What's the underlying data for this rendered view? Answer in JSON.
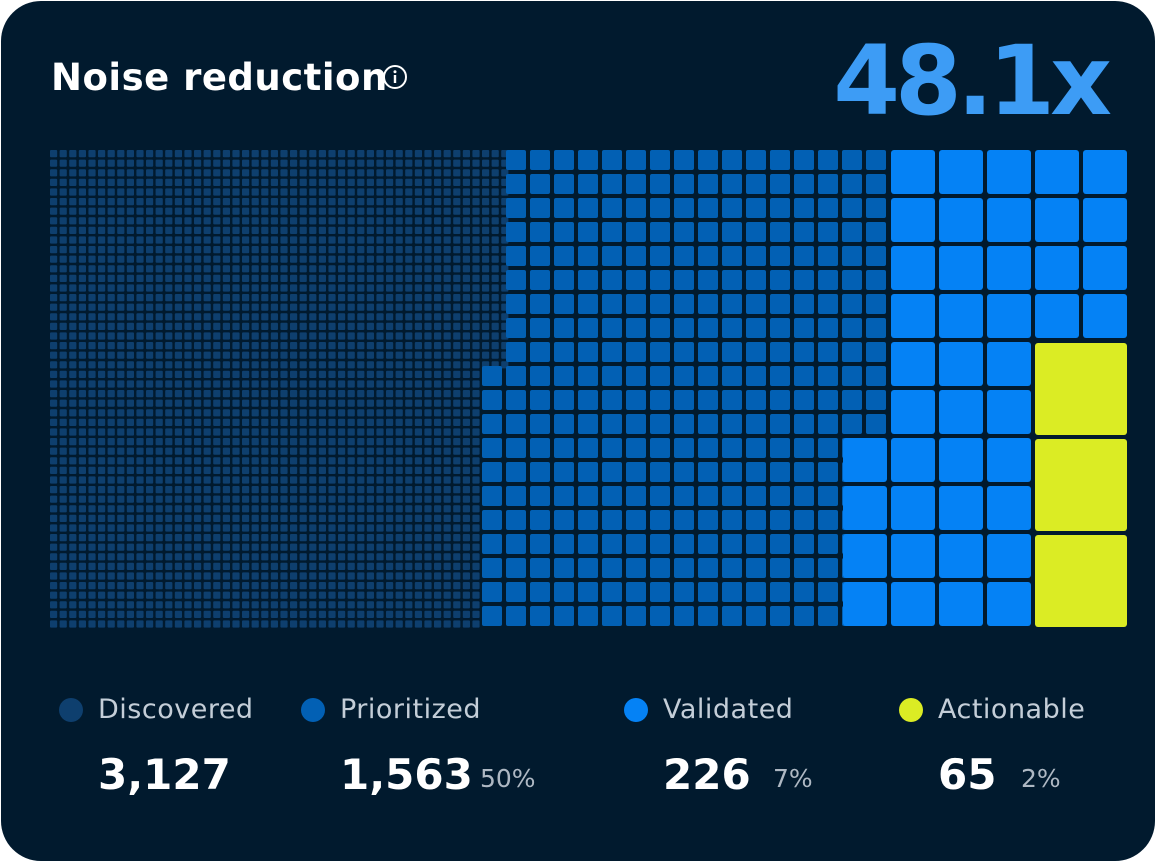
{
  "header": {
    "title": "Noise reduction",
    "info_icon": "info-icon",
    "ratio": "48.1x"
  },
  "colors": {
    "background": "#011a2e",
    "discovered": "#0e3f6e",
    "prioritized": "#0260b4",
    "validated": "#0582f5",
    "actionable": "#dbec24",
    "ratio": "#3d9cf5"
  },
  "chart_data": {
    "type": "waffle",
    "title": "Noise reduction",
    "ratio": "48.1x",
    "series": [
      {
        "name": "Discovered",
        "value": 3127,
        "percent": null
      },
      {
        "name": "Prioritized",
        "value": 1563,
        "percent": "50%"
      },
      {
        "name": "Validated",
        "value": 226,
        "percent": "7%"
      },
      {
        "name": "Actionable",
        "value": 65,
        "percent": "2%"
      }
    ]
  },
  "legend": [
    {
      "label": "Discovered",
      "count": "3,127",
      "pct": ""
    },
    {
      "label": "Prioritized",
      "count": "1,563",
      "pct": "50%"
    },
    {
      "label": "Validated",
      "count": "226",
      "pct": "7%"
    },
    {
      "label": "Actionable",
      "count": "65",
      "pct": "2%"
    }
  ]
}
